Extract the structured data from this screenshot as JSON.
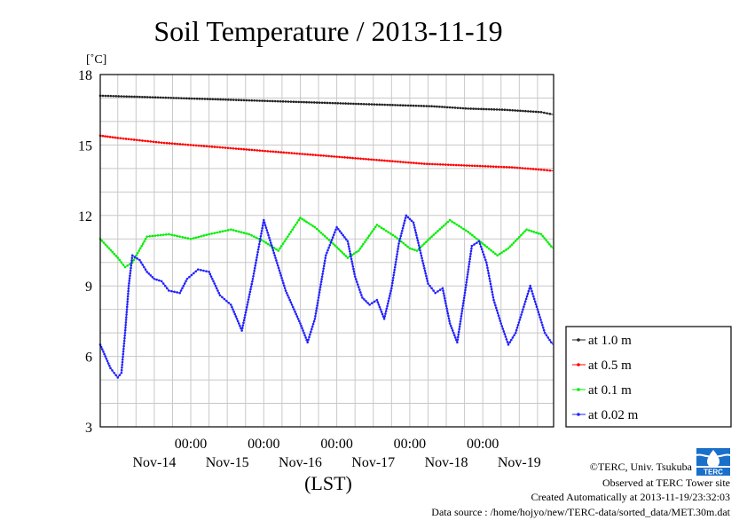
{
  "chart_data": {
    "type": "line",
    "title": "Soil Temperature / 2013-11-19",
    "ylabel_unit": "[˚C]",
    "xlabel": "(LST)",
    "ylim": [
      3,
      18
    ],
    "y_ticks": [
      3,
      6,
      9,
      12,
      15,
      18
    ],
    "x_range_days": [
      13.76,
      19.97
    ],
    "x_ticks": [
      {
        "time": "00:00",
        "date": "Nov-14"
      },
      {
        "time": "00:00",
        "date": "Nov-15"
      },
      {
        "time": "00:00",
        "date": "Nov-16"
      },
      {
        "time": "00:00",
        "date": "Nov-17"
      },
      {
        "time": "00:00",
        "date": "Nov-18"
      },
      {
        "time": "00:00",
        "date": "Nov-19"
      }
    ],
    "grid": true,
    "legend_position": "right",
    "series": [
      {
        "name": "at 1.0 m",
        "color": "#222222",
        "x": [
          13.76,
          14.3,
          14.8,
          15.3,
          15.8,
          16.3,
          16.8,
          17.3,
          17.8,
          18.3,
          18.8,
          19.3,
          19.8,
          19.96
        ],
        "y": [
          17.1,
          17.05,
          17.0,
          16.95,
          16.9,
          16.85,
          16.8,
          16.75,
          16.7,
          16.65,
          16.55,
          16.5,
          16.4,
          16.3
        ]
      },
      {
        "name": "at 0.5 m",
        "color": "#ff0000",
        "x": [
          13.76,
          14.0,
          14.3,
          14.6,
          15.0,
          15.4,
          15.8,
          16.2,
          16.6,
          17.0,
          17.4,
          17.8,
          18.2,
          18.6,
          19.0,
          19.4,
          19.8,
          19.96
        ],
        "y": [
          15.4,
          15.3,
          15.2,
          15.1,
          15.0,
          14.9,
          14.8,
          14.7,
          14.6,
          14.5,
          14.4,
          14.3,
          14.2,
          14.15,
          14.1,
          14.05,
          13.95,
          13.9
        ]
      },
      {
        "name": "at 0.1 m",
        "color": "#00ee00",
        "x": [
          13.76,
          14.0,
          14.1,
          14.2,
          14.4,
          14.7,
          15.0,
          15.25,
          15.55,
          15.8,
          16.0,
          16.2,
          16.35,
          16.5,
          16.7,
          16.95,
          17.15,
          17.3,
          17.55,
          17.8,
          18.0,
          18.1,
          18.3,
          18.55,
          18.8,
          19.0,
          19.2,
          19.35,
          19.6,
          19.8,
          19.96
        ],
        "y": [
          11.0,
          10.2,
          9.8,
          10.0,
          11.1,
          11.2,
          11.0,
          11.2,
          11.4,
          11.2,
          10.9,
          10.5,
          11.2,
          11.9,
          11.5,
          10.8,
          10.2,
          10.5,
          11.6,
          11.1,
          10.6,
          10.5,
          11.1,
          11.8,
          11.3,
          10.8,
          10.3,
          10.6,
          11.4,
          11.2,
          10.6
        ]
      },
      {
        "name": "at 0.02 m",
        "color": "#2222ff",
        "x": [
          13.76,
          13.9,
          14.0,
          14.05,
          14.1,
          14.15,
          14.2,
          14.3,
          14.4,
          14.5,
          14.6,
          14.7,
          14.85,
          14.95,
          15.1,
          15.25,
          15.4,
          15.55,
          15.7,
          15.85,
          16.0,
          16.15,
          16.3,
          16.4,
          16.5,
          16.6,
          16.7,
          16.85,
          17.0,
          17.15,
          17.25,
          17.35,
          17.45,
          17.55,
          17.65,
          17.75,
          17.85,
          17.95,
          18.05,
          18.15,
          18.25,
          18.35,
          18.45,
          18.55,
          18.65,
          18.75,
          18.85,
          18.95,
          19.05,
          19.15,
          19.25,
          19.35,
          19.45,
          19.55,
          19.65,
          19.75,
          19.85,
          19.96
        ],
        "y": [
          6.5,
          5.5,
          5.1,
          5.3,
          7.0,
          9.0,
          10.3,
          10.1,
          9.6,
          9.3,
          9.2,
          8.8,
          8.7,
          9.3,
          9.7,
          9.6,
          8.6,
          8.2,
          7.1,
          9.3,
          11.8,
          10.3,
          8.8,
          8.1,
          7.4,
          6.6,
          7.6,
          10.3,
          11.5,
          10.9,
          9.4,
          8.5,
          8.2,
          8.4,
          7.6,
          8.9,
          10.8,
          12.0,
          11.7,
          10.4,
          9.1,
          8.7,
          8.9,
          7.4,
          6.6,
          8.6,
          10.7,
          10.9,
          10.0,
          8.4,
          7.4,
          6.5,
          7.0,
          8.0,
          9.0,
          8.0,
          7.0,
          6.5
        ]
      }
    ]
  },
  "credits": {
    "copyright": "©TERC, Univ. Tsukuba",
    "observed": "Observed at TERC Tower site",
    "created": "Created Automatically at 2013-11-19/23:32:03",
    "source": "Data source : /home/hojyo/new/TERC-data/sorted_data/MET.30m.dat"
  },
  "logo_text": "TERC"
}
